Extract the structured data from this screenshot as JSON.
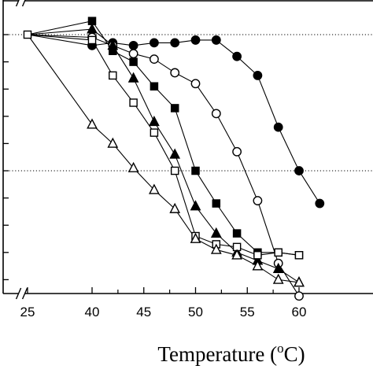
{
  "chart_data": {
    "type": "line",
    "title": "",
    "xlabel": "Temperature (",
    "xlabel_superscript": "o",
    "xlabel_suffix": "C)",
    "ylabel": "",
    "x_tick_labels": [
      "25",
      "40",
      "45",
      "50",
      "55",
      "60"
    ],
    "x_ticks": [
      25,
      40,
      45,
      50,
      55,
      60
    ],
    "x_breaks": [
      {
        "between": [
          25,
          40
        ]
      }
    ],
    "xlim": [
      22,
      62
    ],
    "ylim": [
      0,
      1.05
    ],
    "y_minor_ticks": [
      0.1,
      0.2,
      0.3,
      0.4,
      0.5,
      0.6,
      0.7,
      0.8,
      0.9,
      1.0
    ],
    "reference_lines": [
      {
        "y": 0.5,
        "style": "dotted"
      },
      {
        "y": 1.0,
        "style": "dotted"
      }
    ],
    "grid": false,
    "legend": null,
    "series": [
      {
        "marker": "filled-circle",
        "x": [
          25,
          40,
          42,
          44,
          46,
          48,
          50,
          52,
          54,
          56,
          58,
          60,
          62
        ],
        "y": [
          1.0,
          0.96,
          0.97,
          0.96,
          0.97,
          0.97,
          0.98,
          0.98,
          0.92,
          0.85,
          0.66,
          0.5,
          0.38
        ]
      },
      {
        "marker": "open-circle",
        "x": [
          25,
          40,
          42,
          44,
          46,
          48,
          50,
          52,
          54,
          56,
          58,
          60
        ],
        "y": [
          1.0,
          0.99,
          0.96,
          0.93,
          0.91,
          0.86,
          0.82,
          0.71,
          0.57,
          0.39,
          0.16,
          0.04
        ]
      },
      {
        "marker": "filled-square",
        "x": [
          25,
          40,
          42,
          44,
          46,
          48,
          50,
          52,
          54,
          56,
          58,
          60
        ],
        "y": [
          1.0,
          1.05,
          0.94,
          0.9,
          0.81,
          0.73,
          0.5,
          0.38,
          0.27,
          0.2,
          0.2,
          0.19
        ]
      },
      {
        "marker": "filled-triangle",
        "x": [
          25,
          40,
          42,
          44,
          46,
          48,
          50,
          52,
          54,
          56,
          58,
          60
        ],
        "y": [
          1.0,
          1.02,
          0.96,
          0.84,
          0.68,
          0.56,
          0.37,
          0.27,
          0.2,
          0.17,
          0.14,
          0.09
        ]
      },
      {
        "marker": "open-square",
        "x": [
          25,
          40,
          42,
          44,
          46,
          48,
          50,
          52,
          54,
          56,
          58,
          60
        ],
        "y": [
          1.0,
          0.98,
          0.85,
          0.75,
          0.64,
          0.5,
          0.26,
          0.23,
          0.22,
          0.19,
          0.2,
          0.19
        ]
      },
      {
        "marker": "open-triangle",
        "x": [
          25,
          40,
          42,
          44,
          46,
          48,
          50,
          52,
          54,
          56,
          58,
          60
        ],
        "y": [
          1.0,
          0.67,
          0.6,
          0.51,
          0.43,
          0.36,
          0.25,
          0.21,
          0.19,
          0.15,
          0.1,
          0.09
        ]
      }
    ]
  }
}
